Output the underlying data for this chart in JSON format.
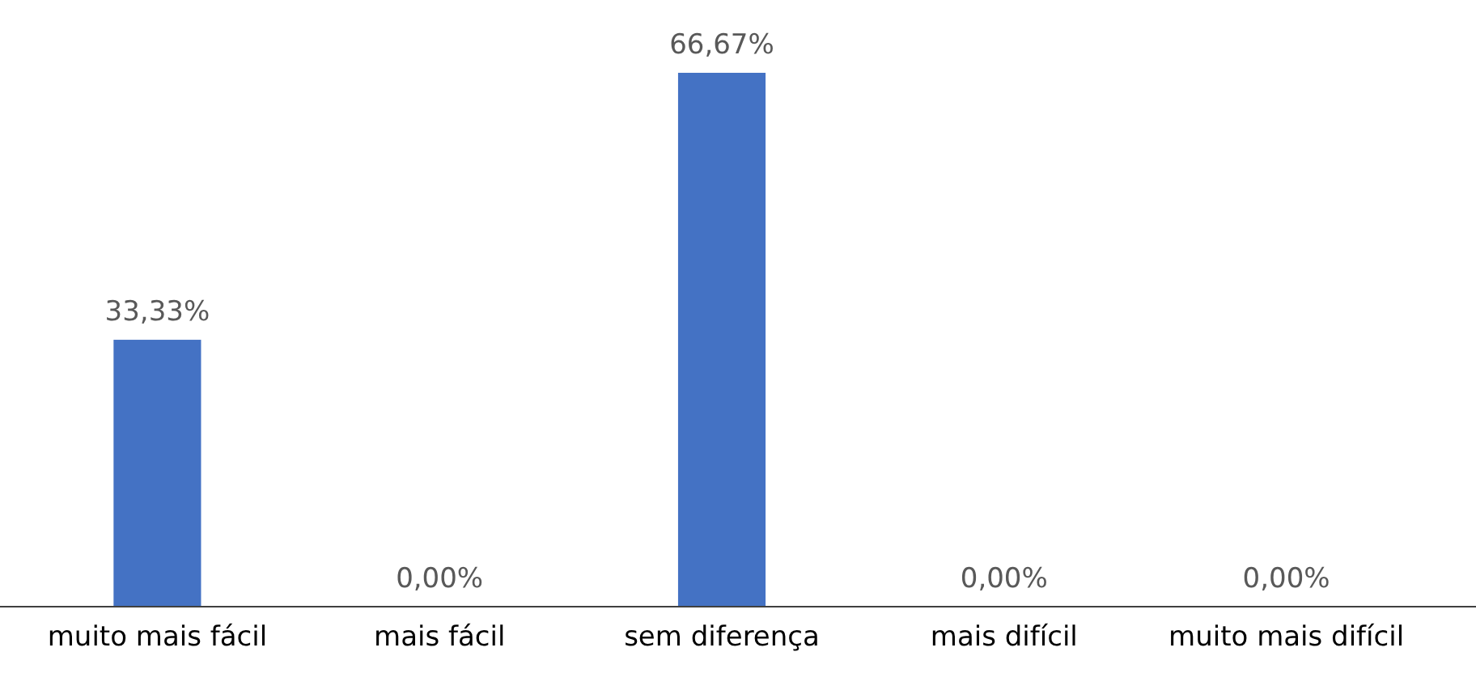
{
  "chart_data": {
    "type": "bar",
    "categories": [
      "muito mais fácil",
      "mais fácil",
      "sem diferença",
      "mais difícil",
      "muito mais difícil"
    ],
    "values": [
      33.33,
      0,
      66.67,
      0,
      0
    ],
    "color": "#4472c4",
    "value_labels": [
      "33,33%",
      "0,00%",
      "66,67%",
      "0,00%",
      "0,00%"
    ]
  }
}
